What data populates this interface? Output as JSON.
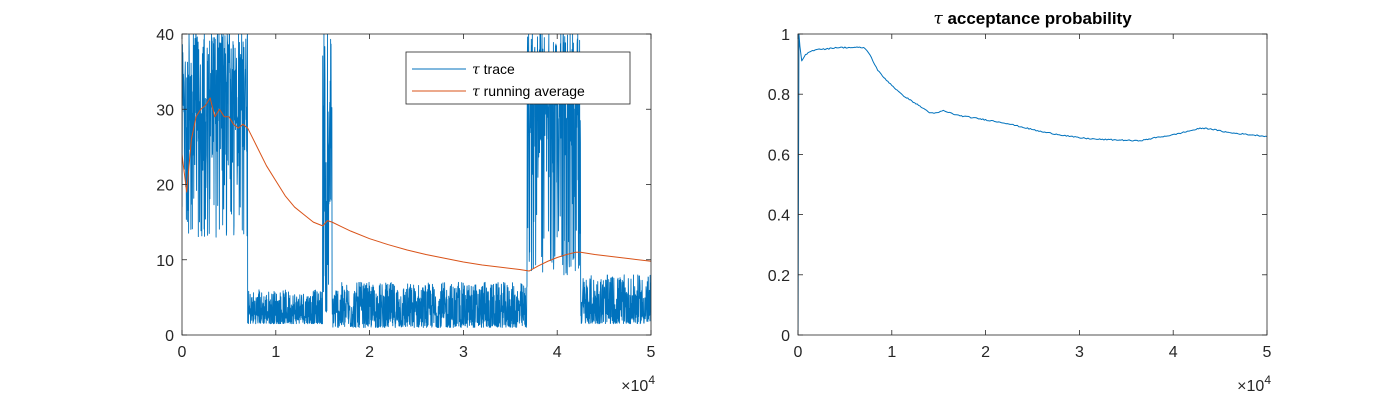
{
  "chart_data": [
    {
      "type": "line",
      "title": "",
      "xlabel": "",
      "ylabel": "",
      "xlim": [
        0,
        50000
      ],
      "ylim": [
        0,
        40
      ],
      "x_ticks": [
        "0",
        "1",
        "2",
        "3",
        "4",
        "5"
      ],
      "y_ticks": [
        "0",
        "10",
        "20",
        "30",
        "40"
      ],
      "x_multiplier": {
        "prefix": "×10",
        "exponent": "4"
      },
      "legend": {
        "position": "top-right",
        "entries": [
          {
            "symbol": "τ",
            "text": " trace",
            "color": "#0072BD"
          },
          {
            "symbol": "τ",
            "text": " running average",
            "color": "#D95319"
          }
        ]
      },
      "series": [
        {
          "name": "τ trace",
          "color": "#0072BD",
          "style": "noisy",
          "segments": [
            {
              "x": [
                0,
                7000
              ],
              "low": 13,
              "high": 40,
              "base": 28,
              "spike_to": 40,
              "spike_rate": 0.35
            },
            {
              "x": [
                7000,
                15000
              ],
              "low": 1.5,
              "high": 6,
              "base": 3,
              "spike_to": 14,
              "spike_rate": 0.006
            },
            {
              "x": [
                15000,
                16000
              ],
              "low": 3,
              "high": 40,
              "base": 18,
              "spike_to": 40,
              "spike_rate": 0.25
            },
            {
              "x": [
                16000,
                36800
              ],
              "low": 1,
              "high": 7,
              "base": 3,
              "spike_to": 15,
              "spike_rate": 0.006
            },
            {
              "x": [
                36800,
                42500
              ],
              "low": 8,
              "high": 40,
              "base": 26,
              "spike_to": 40,
              "spike_rate": 0.3
            },
            {
              "x": [
                42500,
                50000
              ],
              "low": 1.5,
              "high": 8,
              "base": 3,
              "spike_to": 12,
              "spike_rate": 0.006
            }
          ]
        },
        {
          "name": "τ running average",
          "color": "#D95319",
          "style": "smooth",
          "x": [
            0,
            500,
            1000,
            1500,
            2000,
            2500,
            3000,
            3500,
            4000,
            4500,
            5000,
            5500,
            6000,
            6500,
            7000,
            8000,
            9000,
            10000,
            11000,
            12000,
            13000,
            14000,
            15000,
            15500,
            16000,
            17000,
            18000,
            20000,
            22000,
            24000,
            26000,
            28000,
            30000,
            32000,
            34000,
            36000,
            37000,
            38000,
            39000,
            40000,
            41000,
            42000,
            42500,
            43000,
            44000,
            46000,
            48000,
            50000
          ],
          "y": [
            24,
            19,
            26,
            29,
            30,
            30.5,
            31.5,
            29,
            30,
            29,
            29,
            28,
            27.5,
            28,
            27.5,
            25,
            22.5,
            20.5,
            18.5,
            17,
            16,
            15,
            14.5,
            15.2,
            15,
            14.4,
            13.8,
            12.8,
            12,
            11.3,
            10.7,
            10.2,
            9.7,
            9.3,
            9.0,
            8.7,
            8.5,
            9.2,
            9.8,
            10.3,
            10.7,
            11,
            11,
            10.9,
            10.7,
            10.4,
            10.1,
            9.8
          ]
        }
      ]
    },
    {
      "type": "line",
      "title": " acceptance probability",
      "title_symbol": "τ",
      "xlabel": "",
      "ylabel": "",
      "xlim": [
        0,
        50000
      ],
      "ylim": [
        0,
        1
      ],
      "x_ticks": [
        "0",
        "1",
        "2",
        "3",
        "4",
        "5"
      ],
      "y_ticks": [
        "0",
        "0.2",
        "0.4",
        "0.6",
        "0.8",
        "1"
      ],
      "x_multiplier": {
        "prefix": "×10",
        "exponent": "4"
      },
      "series": [
        {
          "name": "τ acceptance probability",
          "color": "#0072BD",
          "style": "smooth",
          "x": [
            0,
            100,
            200,
            400,
            800,
            1200,
            2000,
            3000,
            4000,
            5000,
            6000,
            7000,
            7500,
            8000,
            8500,
            9000,
            10000,
            11000,
            12000,
            13000,
            14000,
            14500,
            15000,
            15500,
            16000,
            17000,
            18000,
            19000,
            20000,
            22000,
            24000,
            26000,
            28000,
            30000,
            32000,
            34000,
            35000,
            36000,
            37000,
            38000,
            40000,
            42000,
            43000,
            44000,
            45000,
            46000,
            48000,
            50000
          ],
          "y": [
            0,
            1.0,
            0.96,
            0.91,
            0.93,
            0.94,
            0.95,
            0.95,
            0.955,
            0.955,
            0.955,
            0.955,
            0.94,
            0.91,
            0.88,
            0.86,
            0.83,
            0.8,
            0.78,
            0.76,
            0.74,
            0.735,
            0.74,
            0.745,
            0.74,
            0.73,
            0.725,
            0.72,
            0.715,
            0.705,
            0.69,
            0.675,
            0.665,
            0.655,
            0.65,
            0.648,
            0.647,
            0.645,
            0.648,
            0.655,
            0.665,
            0.68,
            0.687,
            0.685,
            0.678,
            0.672,
            0.666,
            0.66
          ]
        }
      ]
    }
  ]
}
